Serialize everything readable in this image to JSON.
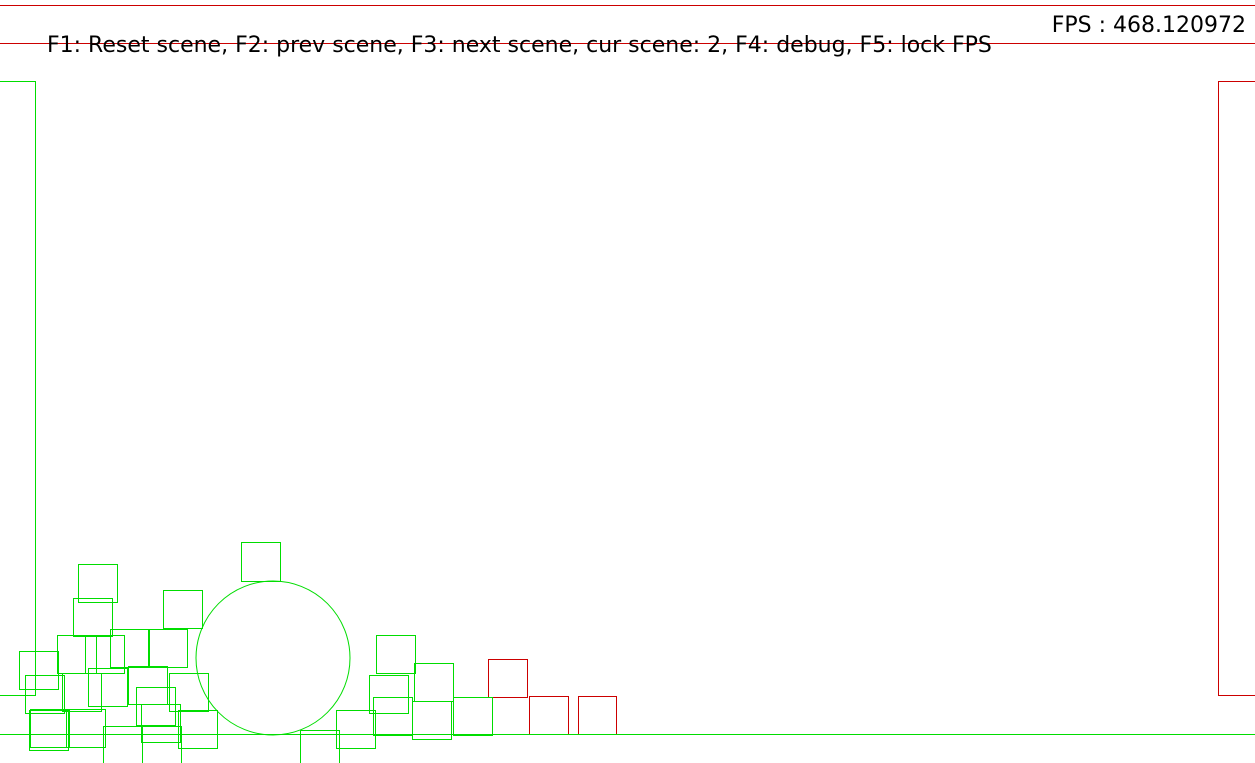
{
  "hud": {
    "controls_help": "F1: Reset scene, F2: prev scene, F3: next scene, cur scene: 2, F4: debug, F5: lock FPS",
    "fps_label": "FPS : 468.120972"
  },
  "colors": {
    "awake": "#00dd00",
    "static": "#cc0000",
    "text": "#000000",
    "background": "#ffffff"
  }
}
